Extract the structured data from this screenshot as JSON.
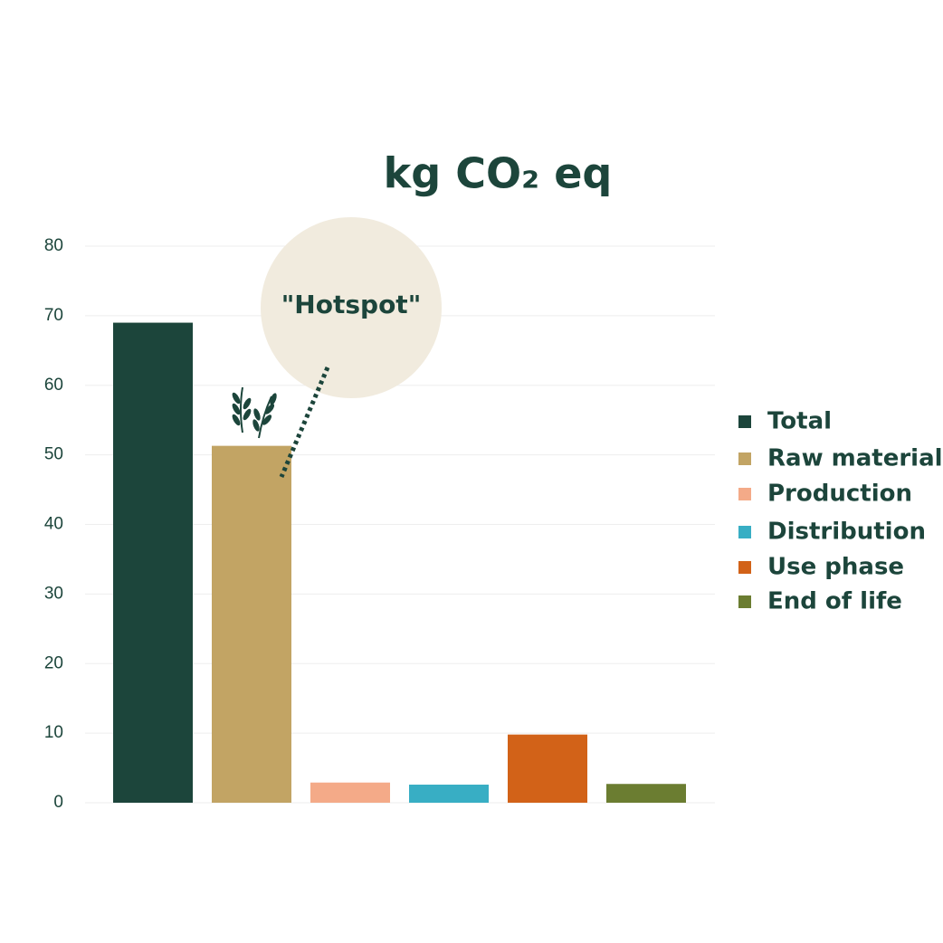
{
  "chart_data": {
    "type": "bar",
    "title": "kg CO₂ eq",
    "annotation": "\"Hotspot\"",
    "categories": [
      "Total",
      "Raw material",
      "Production",
      "Distribution",
      "Use phase",
      "End of life"
    ],
    "values": [
      69,
      51.3,
      2.9,
      2.6,
      9.8,
      2.7
    ],
    "colors": [
      "#1c453b",
      "#c2a464",
      "#f4aa88",
      "#38aec4",
      "#d26218",
      "#6b7d31"
    ],
    "ylim": [
      0,
      80
    ],
    "yticks": [
      0,
      10,
      20,
      30,
      40,
      50,
      60,
      70,
      80
    ],
    "grid": true,
    "legend": "right"
  }
}
